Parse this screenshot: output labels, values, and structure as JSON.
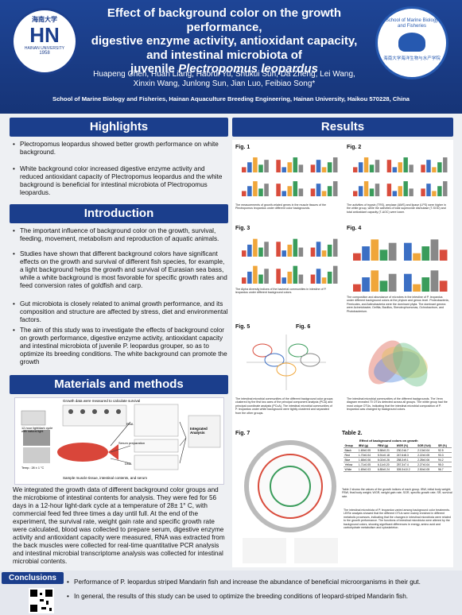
{
  "header": {
    "title_lines": [
      "Effect of background color on the growth performance,",
      "digestive enzyme activity, antioxidant capacity,",
      "and intestinal microbiota of"
    ],
    "title_plain": "juvenile",
    "title_italic": "Plectropomus leopardus",
    "authors": [
      "Huapeng Chen, Huan Liang, Haorui Yu, Shukui Sun, Da Zheng, Lei Wang,",
      "Xinxin Wang, Junlong Sun, Jian Luo, Feibiao Song*"
    ],
    "affiliation": "School of Marine Biology and Fisheries, Hainan Aquaculture Breeding Engineering, Hainan University, Haikou 570228, China",
    "left_logo": {
      "top": "海南大学",
      "mark": "HN",
      "year": "1958",
      "ring": "HAINAN UNIVERSITY"
    },
    "right_logo": {
      "ring": "School of Marine Biology and Fisheries",
      "bottom": "海南大学海洋生物与水产学院"
    }
  },
  "highlights": {
    "heading": "Highlights",
    "items": [
      "Plectropomus leopardus showed better growth performance on white background.",
      "White background color increased digestive enzyme activity and reduced antioxidant capacity of Plectropomus leopardus and the white background is beneficial for intestinal microbiota of Plectropomus leopardus."
    ]
  },
  "introduction": {
    "heading": "Introduction",
    "items": [
      "The important influence of background color on the growth, survival, feeding, movement, metabolism and reproduction of aquatic animals.",
      "Studies have shown that different background colors have significant effects on the growth and survival of different fish species, for example, a light background helps the growth and survival of Eurasian sea bass, while a white background is most favorable for specific growth rates and feed conversion rates of goldfish and carp.",
      "Gut microbiota is closely related to animal growth performance, and its composition and structure are affected by stress, diet and environmental factors.",
      "The aim of this study was to investigate the effects of background color on growth performance, digestive enzyme activity, antioxidant capacity and intestinal microbiota of juvenile P. leopardus grouper, so as to optimize its breeding conditions. The white background can promote the growth"
    ]
  },
  "methods": {
    "heading": "Materials and methods",
    "figure": {
      "top": "Growth data were measured to calculate survival",
      "light": "12-hour light/dark cycle with natural light",
      "temp": "Temp.: 28 ± 1 °C",
      "rna": "RNA",
      "serum": "Serum preparation",
      "dna": "DNA",
      "integrated": "Integrated Analysis",
      "bottom": "Sample muscle tissue, intestinal contents, and serum"
    },
    "text": "We integrated the growth data of different background color groups and the microbiome of intestinal contents for analysis. They were fed for 56 days in a 12-hour light-dark cycle at a temperature of 28± 1° C, with commercial feed fed three times a day until full. At the end of the experiment, the survival rate, weight gain rate and specific growth rate were calculated, blood was collected to prepare serum, digestive enzyme activity and antioxidant capacity were measured, RNA was extracted from the back muscles were collected for real-time quantitative PCR analysis and intestinal microbial transcriptome analysis was collected for intestinal microbial contents."
  },
  "results": {
    "heading": "Results",
    "figures": [
      {
        "label": "Fig. 1",
        "caption": "The measurements of growth-related genes in the muscle tissues of the Plectropomus leopardus under different color backgrounds."
      },
      {
        "label": "Fig. 2",
        "caption": "The activities of trypsin (TRS), amylase (AMS) and lipase (LPS) were higher in the white group, while the activities of total superoxide dismutase (T-SOD) and total antioxidant capacity (T-AOC) were lower."
      },
      {
        "label": "Fig. 3",
        "caption": "The Alpha diversity indices of the bacterial communities in intestine of P. leopardus under different background colors."
      },
      {
        "label": "Fig. 4",
        "caption": "The composition and abundance of microbes in the intestine of P. leopardus under different background colors at the phylum and genus level. Proteobacteria, Firmicutes, and Actinobacteria were the dominant phyla. The dominant genera were Acinetobacter, Delftia, Bacillus, Stenotrophomonas, Ochrobactrum, and Photobacterium."
      },
      {
        "label": "Fig. 5",
        "caption": "The intestinal microbial communities of the different background color groups clustered by the first two axes of the principal component analysis (PCA) and principal coordinate analysis (PCoA). The intestinal microbial communities of P. leopardus under white background were tightly clustered and separated from the other groups."
      },
      {
        "label": "Fig. 6",
        "caption": "The intestinal microbial communities of the different backgrounds. The Venn diagram revealed 70 OTUs detected across all groups. The white group had the most unique OTUs, indicating that the intestinal microbial composition of P. leopardus was changed by background colors."
      },
      {
        "label": "Fig. 7",
        "caption": ""
      },
      {
        "label": "Table 2.",
        "caption": "Table 2 shows the values of the growth indices of each group. IBW, initial body weight; FBW, final body weight; WGR, weight gain rate; SGR, specific growth rate; SR, survival rate."
      }
    ],
    "table": {
      "title": "Effect of background colors on growth",
      "columns": [
        "Group",
        "IBW (g)",
        "FBW (g)",
        "WGR (%)",
        "SGR (%/d)",
        "SR (%)"
      ],
      "rows": [
        [
          "Black",
          "1.69±0.05",
          "5.58±0.21",
          "230.2±6.7",
          "2.13±0.04",
          "92.5"
        ],
        [
          "Red",
          "1.70±0.04",
          "5.91±0.18",
          "247.6±8.3",
          "2.22±0.05",
          "93.3"
        ],
        [
          "Blue",
          "1.68±0.06",
          "6.02±0.26",
          "258.3±9.1",
          "2.28±0.06",
          "94.2"
        ],
        [
          "Yellow",
          "1.71±0.05",
          "6.11±0.20",
          "257.3±7.4",
          "2.27±0.04",
          "95.0"
        ],
        [
          "White",
          "1.69±0.03",
          "6.85±0.24",
          "305.3±10.2",
          "2.50±0.05",
          "96.7"
        ]
      ]
    },
    "table_text": "The intestinal microbiota of P. leopardus varied among background color treatments. LEfSe analysis showed that the different OTUs were mainly enriched in different metabolic processes, indicating that the changes in intestinal microbiota were related to the growth performance. The functions of intestinal microbiota were altered by the background colors, showing significant differences in energy, amino acid and carbohydrate metabolism and cytoskeleton."
  },
  "conclusions": {
    "heading": "Conclusions",
    "items": [
      "Performance of P. leopardus striped Mandarin fish and increase the abundance of beneficial microorganisms in their gut.",
      "In general, the results of this study can be used to optimize the breeding conditions of leopard-striped Mandarin fish."
    ]
  }
}
